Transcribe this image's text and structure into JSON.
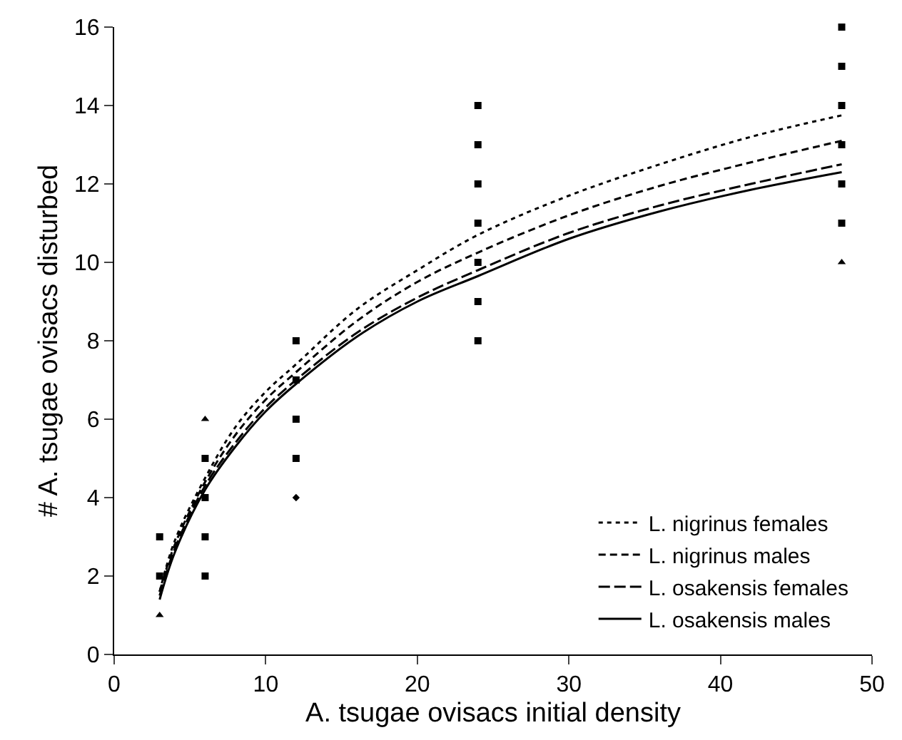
{
  "chart_data": {
    "type": "scatter",
    "xlabel": "A. tsugae ovisacs initial density",
    "ylabel": "# A. tsugae ovisacs disturbed",
    "xlim": [
      0,
      50
    ],
    "xticks": [
      0,
      10,
      20,
      30,
      40,
      50
    ],
    "ylim": [
      0,
      16
    ],
    "yticks": [
      0,
      2,
      4,
      6,
      8,
      10,
      12,
      14,
      16
    ],
    "grid": false,
    "legend": "bottom right",
    "series": [
      {
        "marker": "square",
        "color": "#000000",
        "x": [
          3,
          3,
          6,
          6,
          6,
          6,
          12,
          12,
          12,
          12,
          24,
          24,
          24,
          24,
          24,
          24,
          24,
          48,
          48,
          48,
          48,
          48,
          48
        ],
        "values": [
          3,
          2,
          5,
          4,
          3,
          2,
          8,
          7,
          6,
          5,
          14,
          13,
          12,
          11,
          10,
          9,
          8,
          16,
          15,
          14,
          13,
          12,
          11
        ]
      },
      {
        "marker": "triangle",
        "color": "#000000",
        "x": [
          3,
          6,
          48
        ],
        "values": [
          1,
          6,
          10
        ]
      },
      {
        "marker": "diamond",
        "color": "#000000",
        "x": [
          12
        ],
        "values": [
          4
        ]
      },
      {
        "type": "line",
        "name": "L. nigrinus females",
        "line_style": "dotted",
        "color": "#000000",
        "x": [
          3,
          4,
          6,
          8,
          10,
          12,
          16,
          20,
          24,
          30,
          36,
          42,
          48
        ],
        "values": [
          1.6,
          2.9,
          4.5,
          5.8,
          6.7,
          7.4,
          8.8,
          9.8,
          10.7,
          11.7,
          12.5,
          13.2,
          13.75
        ]
      },
      {
        "type": "line",
        "name": "L. nigrinus males",
        "line_style": "dashed",
        "color": "#000000",
        "x": [
          3,
          4,
          6,
          8,
          10,
          12,
          16,
          20,
          24,
          30,
          36,
          42,
          48
        ],
        "values": [
          1.6,
          2.8,
          4.4,
          5.6,
          6.5,
          7.2,
          8.5,
          9.5,
          10.25,
          11.2,
          11.95,
          12.55,
          13.1
        ]
      },
      {
        "type": "line",
        "name": "L. osakensis females",
        "line_style": "longdash",
        "color": "#000000",
        "x": [
          3,
          4,
          6,
          8,
          10,
          12,
          16,
          20,
          24,
          30,
          36,
          42,
          48
        ],
        "values": [
          1.5,
          2.7,
          4.3,
          5.4,
          6.3,
          7.0,
          8.2,
          9.1,
          9.8,
          10.75,
          11.45,
          12.0,
          12.5
        ]
      },
      {
        "type": "line",
        "name": "L. osakensis males",
        "line_style": "solid",
        "color": "#000000",
        "x": [
          3,
          4,
          6,
          8,
          10,
          12,
          16,
          20,
          24,
          30,
          36,
          42,
          48
        ],
        "values": [
          1.4,
          2.6,
          4.2,
          5.3,
          6.2,
          6.9,
          8.1,
          9.0,
          9.65,
          10.6,
          11.3,
          11.85,
          12.3
        ]
      }
    ]
  }
}
